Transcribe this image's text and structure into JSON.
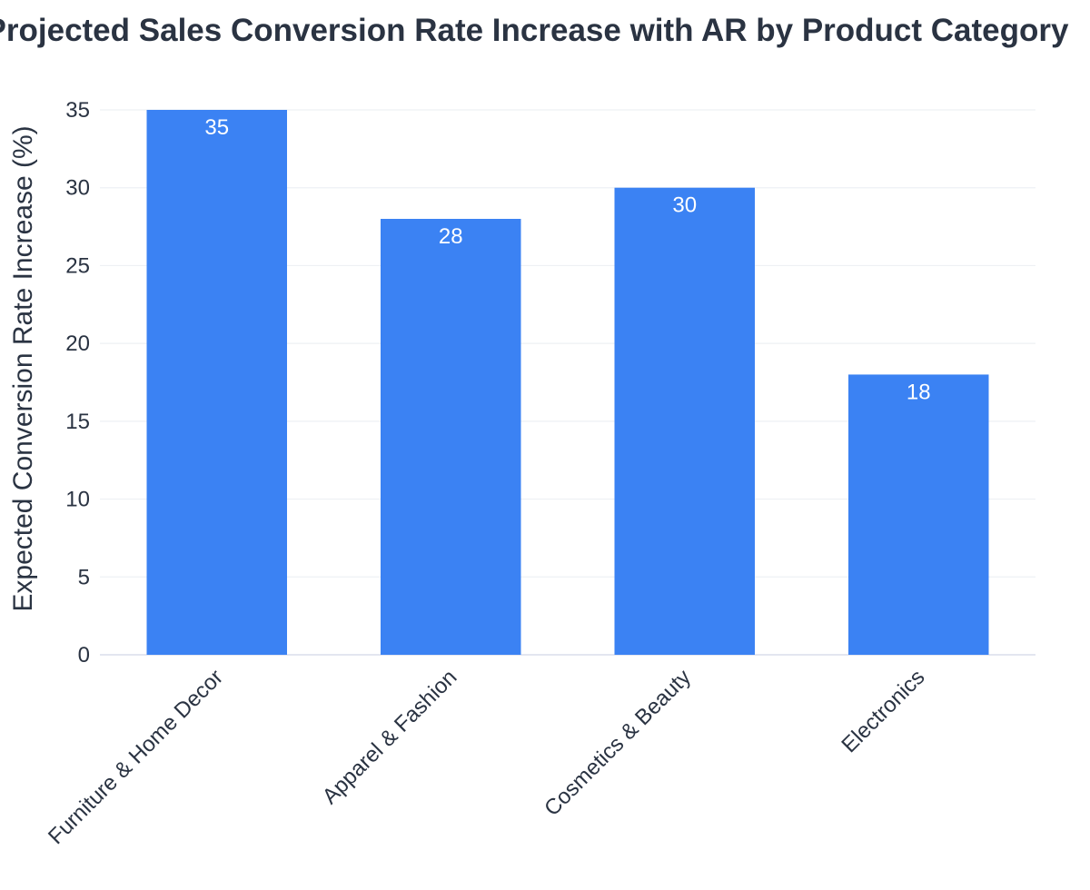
{
  "chart_data": {
    "type": "bar",
    "title": "Projected Sales Conversion Rate Increase with AR by Product Category",
    "xlabel": "",
    "ylabel": "Expected Conversion Rate Increase (%)",
    "categories": [
      "Furniture & Home Decor",
      "Apparel & Fashion",
      "Cosmetics & Beauty",
      "Electronics"
    ],
    "values": [
      35,
      28,
      30,
      18
    ],
    "data_labels": [
      "35",
      "28",
      "30",
      "18"
    ],
    "ylim": [
      0,
      35
    ],
    "yticks": [
      0,
      5,
      10,
      15,
      20,
      25,
      30,
      35
    ],
    "ytick_labels": [
      "0",
      "5",
      "10",
      "15",
      "20",
      "25",
      "30",
      "35"
    ],
    "bar_color": "#3b82f3",
    "grid": true,
    "legend": "none"
  }
}
